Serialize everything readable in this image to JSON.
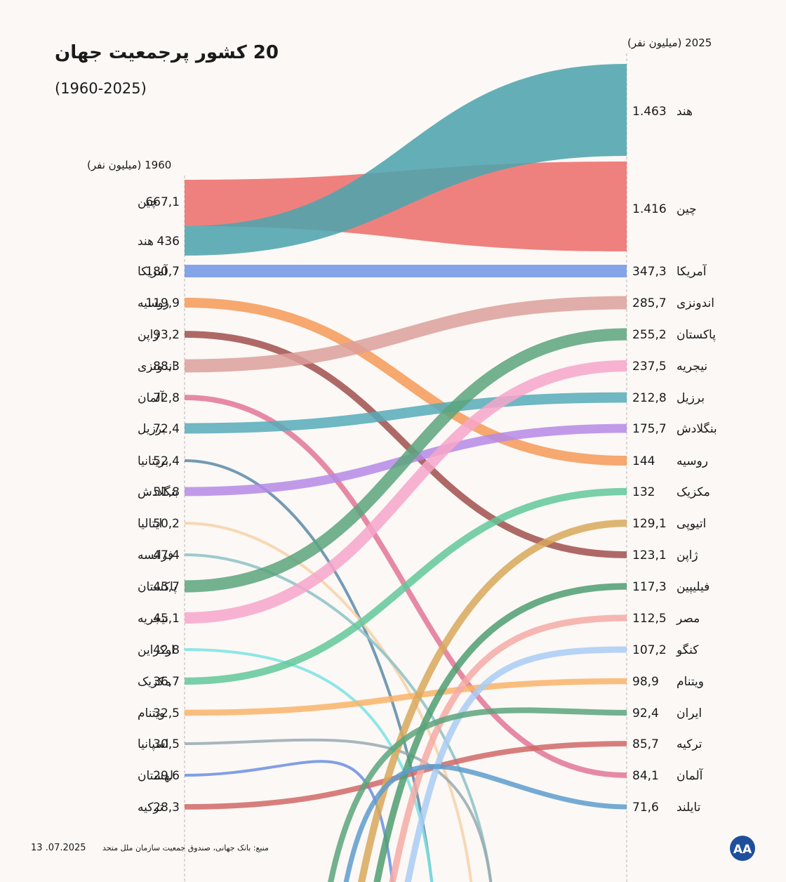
{
  "title": "20 کشور پرجمعیت جهان",
  "subtitle": "(1960-2025)",
  "source": "منبع: بانک جهانی، صندوق جمعیت سازمان ملل متحد",
  "date": "13 .07.2025",
  "logo": "AA",
  "colors": {
    "background": "#fbf8f5",
    "axis": "#bdbdbd"
  },
  "chart_data": {
    "type": "slope",
    "title": "20 کشور پرجمعیت جهان",
    "subtitle": "(1960-2025)",
    "left_header": "1960 (میلیون نفر)",
    "right_header": "2025 (میلیون نفر)",
    "left": [
      {
        "country": "چین",
        "value": "667,1"
      },
      {
        "country": "هند",
        "value": "436"
      },
      {
        "country": "آمریکا",
        "value": "180,7"
      },
      {
        "country": "روسیه",
        "value": "119,9"
      },
      {
        "country": "ژاپن",
        "value": "93,2"
      },
      {
        "country": "اندونزی",
        "value": "88,3"
      },
      {
        "country": "آلمان",
        "value": "72,8"
      },
      {
        "country": "برزیل",
        "value": "72,4"
      },
      {
        "country": "بریتانیا",
        "value": "52,4"
      },
      {
        "country": "بنگلادش",
        "value": "51,8"
      },
      {
        "country": "ایتالیا",
        "value": "50,2"
      },
      {
        "country": "فرانسه",
        "value": "47,4"
      },
      {
        "country": "پاکستان",
        "value": "45,7"
      },
      {
        "country": "نیجریه",
        "value": "45,1"
      },
      {
        "country": "اوکراین",
        "value": "42,8"
      },
      {
        "country": "مکزیک",
        "value": "36,7"
      },
      {
        "country": "ویتنام",
        "value": "32,5"
      },
      {
        "country": "اسپانیا",
        "value": "30,5"
      },
      {
        "country": "لهستان",
        "value": "29,6"
      },
      {
        "country": "ترکیه",
        "value": "28,3"
      }
    ],
    "right": [
      {
        "country": "هند",
        "value": "1.463"
      },
      {
        "country": "چین",
        "value": "1.416"
      },
      {
        "country": "آمریکا",
        "value": "347,3"
      },
      {
        "country": "اندونزی",
        "value": "285,7"
      },
      {
        "country": "پاکستان",
        "value": "255,2"
      },
      {
        "country": "نیجریه",
        "value": "237,5"
      },
      {
        "country": "برزیل",
        "value": "212,8"
      },
      {
        "country": "بنگلادش",
        "value": "175,7"
      },
      {
        "country": "روسیه",
        "value": "144"
      },
      {
        "country": "مکزیک",
        "value": "132"
      },
      {
        "country": "اتیوپی",
        "value": "129,1"
      },
      {
        "country": "ژاپن",
        "value": "123,1"
      },
      {
        "country": "فیلیپین",
        "value": "117,3"
      },
      {
        "country": "مصر",
        "value": "112,5"
      },
      {
        "country": "کنگو",
        "value": "107,2"
      },
      {
        "country": "ویتنام",
        "value": "98,9"
      },
      {
        "country": "ایران",
        "value": "92,4"
      },
      {
        "country": "ترکیه",
        "value": "85,7"
      },
      {
        "country": "آلمان",
        "value": "84,1"
      },
      {
        "country": "تایلند",
        "value": "71,6"
      }
    ],
    "links": [
      {
        "name": "china",
        "from": 0,
        "to": 1,
        "color": "#ec6f6c"
      },
      {
        "name": "india",
        "from": 1,
        "to": 0,
        "color": "#4ea4ae"
      },
      {
        "name": "usa",
        "from": 2,
        "to": 2,
        "color": "#6f95e6"
      },
      {
        "name": "russia",
        "from": 3,
        "to": 8,
        "color": "#f59a57"
      },
      {
        "name": "japan",
        "from": 4,
        "to": 11,
        "color": "#a0504c"
      },
      {
        "name": "indonesia",
        "from": 5,
        "to": 3,
        "color": "#dca09b"
      },
      {
        "name": "germany",
        "from": 6,
        "to": 18,
        "color": "#e27597"
      },
      {
        "name": "brazil",
        "from": 7,
        "to": 6,
        "color": "#56acb8"
      },
      {
        "name": "uk",
        "from": 8,
        "to": null,
        "color": "#5c8aa8"
      },
      {
        "name": "bangladesh",
        "from": 9,
        "to": 7,
        "color": "#b58ae6"
      },
      {
        "name": "italy",
        "from": 10,
        "to": null,
        "color": "#f6d2a8"
      },
      {
        "name": "france",
        "from": 11,
        "to": null,
        "color": "#8cc2c6"
      },
      {
        "name": "pakistan",
        "from": 12,
        "to": 4,
        "color": "#5ba57c"
      },
      {
        "name": "nigeria",
        "from": 13,
        "to": 5,
        "color": "#f7a6ca"
      },
      {
        "name": "ukraine",
        "from": 14,
        "to": null,
        "color": "#7ae3e4"
      },
      {
        "name": "mexico",
        "from": 15,
        "to": 9,
        "color": "#62c899"
      },
      {
        "name": "vietnam",
        "from": 16,
        "to": 15,
        "color": "#f8b468"
      },
      {
        "name": "spain",
        "from": 17,
        "to": null,
        "color": "#98aab0"
      },
      {
        "name": "poland",
        "from": 18,
        "to": null,
        "color": "#6b8ee3"
      },
      {
        "name": "turkey",
        "from": 19,
        "to": 17,
        "color": "#d06866"
      },
      {
        "name": "ethiopia",
        "from": null,
        "to": 10,
        "color": "#d8a85a"
      },
      {
        "name": "philippines",
        "from": null,
        "to": 12,
        "color": "#4f9e71"
      },
      {
        "name": "egypt",
        "from": null,
        "to": 13,
        "color": "#f4aaa4"
      },
      {
        "name": "congo",
        "from": null,
        "to": 14,
        "color": "#a9cdf4"
      },
      {
        "name": "iran",
        "from": null,
        "to": 16,
        "color": "#5aa47c"
      },
      {
        "name": "thailand",
        "from": null,
        "to": 19,
        "color": "#5d9ccc"
      }
    ]
  }
}
